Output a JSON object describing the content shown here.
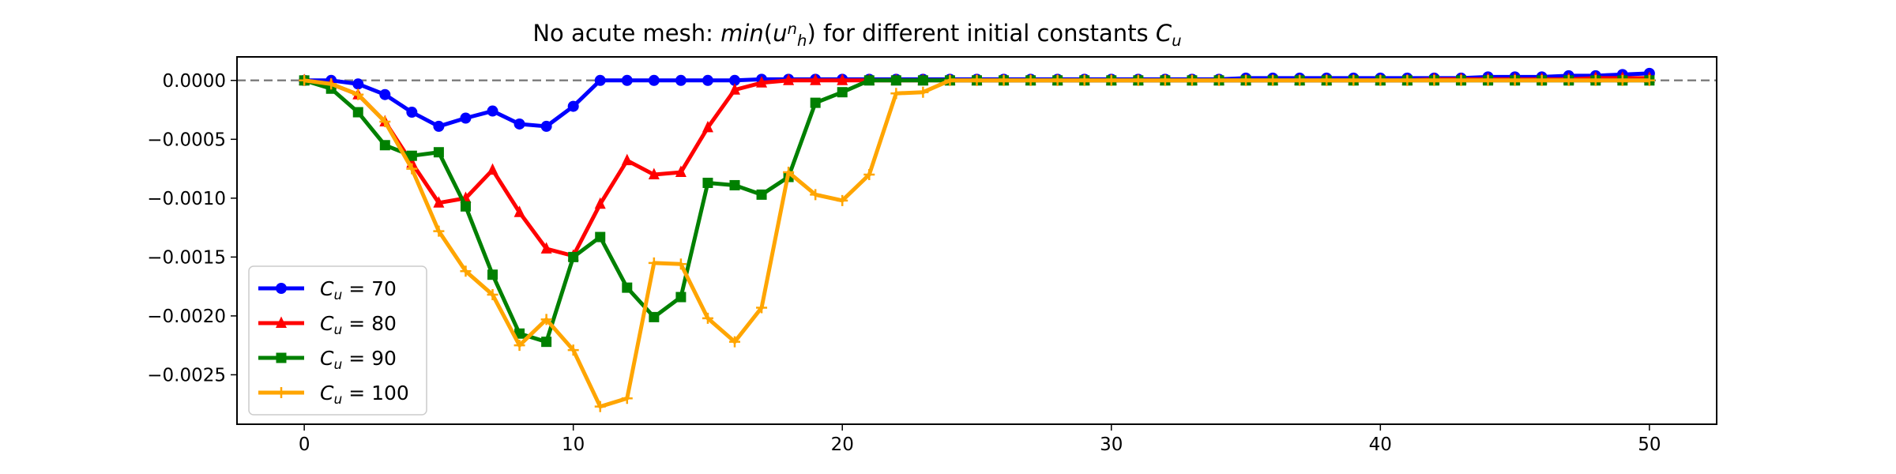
{
  "chart_data": {
    "type": "line",
    "title_parts": [
      {
        "t": "No acute mesh: ",
        "i": false
      },
      {
        "t": "min",
        "i": true
      },
      {
        "t": "(",
        "i": false
      },
      {
        "t": "u",
        "i": true
      },
      {
        "t": "n",
        "i": true,
        "sup": true
      },
      {
        "t": "h",
        "i": true,
        "sub": true
      },
      {
        "t": ")",
        "i": false
      },
      {
        "t": " for different initial constants ",
        "i": false
      },
      {
        "t": "C",
        "i": true
      },
      {
        "t": "u",
        "i": true,
        "sub": true
      }
    ],
    "xlim": [
      -2.5,
      52.5
    ],
    "ylim": [
      -0.00292,
      0.0002
    ],
    "xticks": [
      0,
      10,
      20,
      30,
      40,
      50
    ],
    "xtick_labels": [
      "0",
      "10",
      "20",
      "30",
      "40",
      "50"
    ],
    "yticks": [
      0.0,
      -0.0005,
      -0.001,
      -0.0015,
      -0.002,
      -0.0025
    ],
    "ytick_labels": [
      "0.0000",
      "−0.0005",
      "−0.0010",
      "−0.0015",
      "−0.0020",
      "−0.0025"
    ],
    "grid": false,
    "reference_line": {
      "y": 0,
      "style": "dashed",
      "color": "#808080"
    },
    "legend_position": "lower-left",
    "x": [
      0,
      1,
      2,
      3,
      4,
      5,
      6,
      7,
      8,
      9,
      10,
      11,
      12,
      13,
      14,
      15,
      16,
      17,
      18,
      19,
      20,
      21,
      22,
      23,
      24,
      25,
      26,
      27,
      28,
      29,
      30,
      31,
      32,
      33,
      34,
      35,
      36,
      37,
      38,
      39,
      40,
      41,
      42,
      43,
      44,
      45,
      46,
      47,
      48,
      49,
      50
    ],
    "series": [
      {
        "name_parts": [
          {
            "t": "C",
            "i": true
          },
          {
            "t": "u",
            "i": true,
            "sub": true
          },
          {
            "t": " = 70",
            "i": false
          }
        ],
        "color": "#0000ff",
        "marker": "circle",
        "values": [
          0.0,
          0.0,
          -3e-05,
          -0.00012,
          -0.00027,
          -0.00039,
          -0.00032,
          -0.00026,
          -0.00037,
          -0.00039,
          -0.00022,
          0.0,
          0.0,
          0.0,
          0.0,
          0.0,
          0.0,
          1e-05,
          1e-05,
          1e-05,
          1e-05,
          1e-05,
          1e-05,
          1e-05,
          1e-05,
          1e-05,
          1e-05,
          1e-05,
          1e-05,
          1e-05,
          1e-05,
          1e-05,
          1e-05,
          1e-05,
          1e-05,
          2e-05,
          2e-05,
          2e-05,
          2e-05,
          2e-05,
          2e-05,
          2e-05,
          2e-05,
          2e-05,
          3e-05,
          3e-05,
          3e-05,
          4e-05,
          4e-05,
          5e-05,
          6e-05
        ]
      },
      {
        "name_parts": [
          {
            "t": "C",
            "i": true
          },
          {
            "t": "u",
            "i": true,
            "sub": true
          },
          {
            "t": " = 80",
            "i": false
          }
        ],
        "color": "#ff0000",
        "marker": "triangle",
        "values": [
          0.0,
          -3e-05,
          -0.00012,
          -0.00035,
          -0.0007,
          -0.00104,
          -0.001,
          -0.00076,
          -0.00112,
          -0.00143,
          -0.00149,
          -0.00105,
          -0.00068,
          -0.0008,
          -0.00078,
          -0.0004,
          -8e-05,
          -2e-05,
          0.0,
          0.0,
          0.0,
          0.0,
          0.0,
          0.0,
          0.0,
          0.0,
          0.0,
          0.0,
          0.0,
          0.0,
          0.0,
          0.0,
          0.0,
          0.0,
          0.0,
          0.0,
          0.0,
          0.0,
          0.0,
          0.0,
          0.0,
          0.0,
          1e-05,
          1e-05,
          1e-05,
          1e-05,
          1e-05,
          1e-05,
          2e-05,
          2e-05,
          2e-05
        ]
      },
      {
        "name_parts": [
          {
            "t": "C",
            "i": true
          },
          {
            "t": "u",
            "i": true,
            "sub": true
          },
          {
            "t": " = 90",
            "i": false
          }
        ],
        "color": "#008000",
        "marker": "square",
        "values": [
          0.0,
          -7e-05,
          -0.00027,
          -0.00055,
          -0.00064,
          -0.00061,
          -0.00107,
          -0.00165,
          -0.00215,
          -0.00222,
          -0.0015,
          -0.00133,
          -0.00176,
          -0.00201,
          -0.00184,
          -0.00087,
          -0.00089,
          -0.00097,
          -0.00082,
          -0.00019,
          -0.0001,
          0.0,
          0.0,
          0.0,
          0.0,
          0.0,
          0.0,
          0.0,
          0.0,
          0.0,
          0.0,
          0.0,
          0.0,
          0.0,
          0.0,
          0.0,
          0.0,
          0.0,
          0.0,
          0.0,
          0.0,
          0.0,
          0.0,
          0.0,
          0.0,
          0.0,
          0.0,
          0.0,
          0.0,
          0.0,
          0.0
        ]
      },
      {
        "name_parts": [
          {
            "t": "C",
            "i": true
          },
          {
            "t": "u",
            "i": true,
            "sub": true
          },
          {
            "t": " = 100",
            "i": false
          }
        ],
        "color": "#ffa500",
        "marker": "plus",
        "values": [
          0.0,
          -3e-05,
          -0.00012,
          -0.00035,
          -0.00075,
          -0.00128,
          -0.00162,
          -0.00182,
          -0.00225,
          -0.00203,
          -0.00229,
          -0.00277,
          -0.0027,
          -0.00155,
          -0.00156,
          -0.00202,
          -0.00222,
          -0.00193,
          -0.00078,
          -0.00097,
          -0.00102,
          -0.0008,
          -0.00011,
          -0.0001,
          0.0,
          0.0,
          0.0,
          0.0,
          0.0,
          0.0,
          0.0,
          0.0,
          0.0,
          0.0,
          0.0,
          0.0,
          0.0,
          0.0,
          0.0,
          0.0,
          0.0,
          0.0,
          0.0,
          0.0,
          0.0,
          0.0,
          0.0,
          0.0,
          0.0,
          0.0,
          0.0
        ]
      }
    ]
  }
}
